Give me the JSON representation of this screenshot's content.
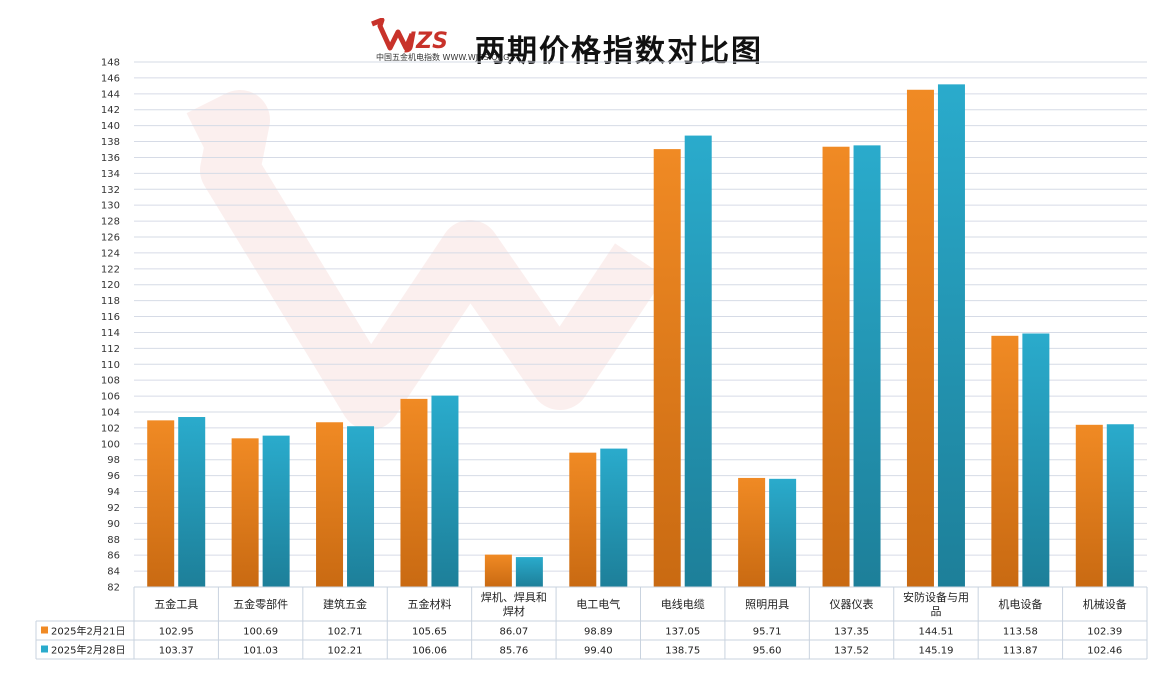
{
  "header": {
    "title": "两期价格指数对比图",
    "logo_text": "WJZS",
    "logo_subtext": "中国五金机电指数 WWW.WJZS.ORG"
  },
  "chart_data": {
    "type": "bar",
    "title": "两期价格指数对比图",
    "xlabel": "",
    "ylabel": "",
    "ylim": [
      82,
      148
    ],
    "ytick_step": 2,
    "grid": true,
    "legend": "table-bottom",
    "categories": [
      "五金工具",
      "五金零部件",
      "建筑五金",
      "五金材料",
      "焊机、焊具和焊材",
      "电工电气",
      "电线电缆",
      "照明用具",
      "仪器仪表",
      "安防设备与用品",
      "机电设备",
      "机械设备"
    ],
    "category_lines": [
      [
        "五金工具"
      ],
      [
        "五金零部件"
      ],
      [
        "建筑五金"
      ],
      [
        "五金材料"
      ],
      [
        "焊机、焊具和",
        "焊材"
      ],
      [
        "电工电气"
      ],
      [
        "电线电缆"
      ],
      [
        "照明用具"
      ],
      [
        "仪器仪表"
      ],
      [
        "安防设备与用",
        "品"
      ],
      [
        "机电设备"
      ],
      [
        "机械设备"
      ]
    ],
    "series": [
      {
        "name": "2025年2月21日",
        "color": "#f08a24",
        "values": [
          102.95,
          100.69,
          102.71,
          105.65,
          86.07,
          98.89,
          137.05,
          95.71,
          137.35,
          144.51,
          113.58,
          102.39
        ],
        "labels": [
          "102.95",
          "100.69",
          "102.71",
          "105.65",
          "86.07",
          "98.89",
          "137.05",
          "95.71",
          "137.35",
          "144.51",
          "113.58",
          "102.39"
        ]
      },
      {
        "name": "2025年2月28日",
        "color": "#2aabcc",
        "values": [
          103.37,
          101.03,
          102.21,
          106.06,
          85.76,
          99.4,
          138.75,
          95.6,
          137.52,
          145.19,
          113.87,
          102.46
        ],
        "labels": [
          "103.37",
          "101.03",
          "102.21",
          "106.06",
          "85.76",
          "99.40",
          "138.75",
          "95.60",
          "137.52",
          "145.19",
          "113.87",
          "102.46"
        ]
      }
    ]
  }
}
